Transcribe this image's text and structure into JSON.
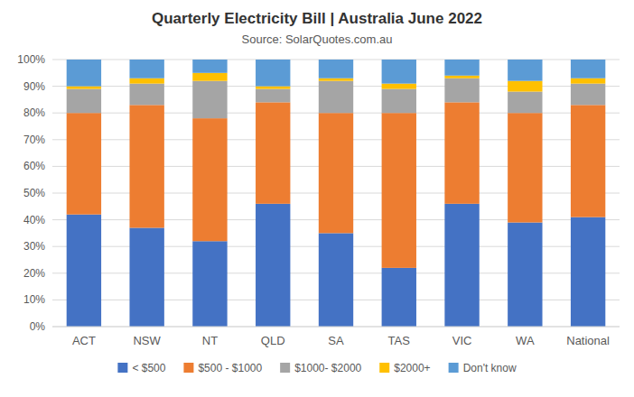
{
  "chart_data": {
    "type": "bar",
    "stacked": true,
    "title": "Quarterly Electricity Bill | Australia June 2022",
    "subtitle": "Source: SolarQuotes.com.au",
    "categories": [
      "ACT",
      "NSW",
      "NT",
      "QLD",
      "SA",
      "TAS",
      "VIC",
      "WA",
      "National"
    ],
    "series": [
      {
        "name": "< $500",
        "color": "#4472C4",
        "values": [
          42,
          37,
          32,
          46,
          35,
          22,
          46,
          39,
          41
        ]
      },
      {
        "name": "$500 - $1000",
        "color": "#ED7D31",
        "values": [
          38,
          46,
          46,
          38,
          45,
          58,
          38,
          41,
          42
        ]
      },
      {
        "name": "$1000- $2000",
        "color": "#A5A5A5",
        "values": [
          9,
          8,
          14,
          5,
          12,
          9,
          9,
          8,
          8
        ]
      },
      {
        "name": "$2000+",
        "color": "#FFC000",
        "values": [
          1,
          2,
          3,
          1,
          1,
          2,
          1,
          4,
          2
        ]
      },
      {
        "name": "Don't know",
        "color": "#5B9BD5",
        "values": [
          10,
          7,
          5,
          10,
          7,
          9,
          6,
          8,
          7
        ]
      }
    ],
    "ylim": [
      0,
      100
    ],
    "yticks": [
      {
        "value": 0,
        "label": "0%"
      },
      {
        "value": 10,
        "label": "10%"
      },
      {
        "value": 20,
        "label": "20%"
      },
      {
        "value": 30,
        "label": "30%"
      },
      {
        "value": 40,
        "label": "40%"
      },
      {
        "value": 50,
        "label": "50%"
      },
      {
        "value": 60,
        "label": "60%"
      },
      {
        "value": 70,
        "label": "70%"
      },
      {
        "value": 80,
        "label": "80%"
      },
      {
        "value": 90,
        "label": "90%"
      },
      {
        "value": 100,
        "label": "100%"
      }
    ],
    "grid": true,
    "legend": "bottom"
  }
}
